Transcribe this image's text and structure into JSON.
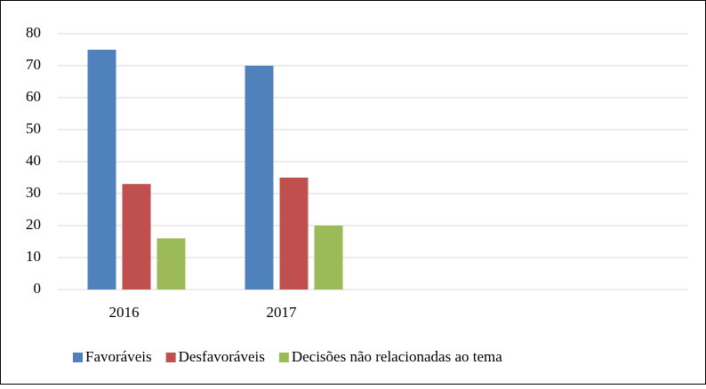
{
  "chart_data": {
    "type": "bar",
    "categories": [
      "2016",
      "2017",
      null,
      null
    ],
    "series": [
      {
        "name": "Favoráveis",
        "color": "#4f81bd",
        "values": [
          75,
          70,
          null,
          null
        ]
      },
      {
        "name": "Desfavoráveis",
        "color": "#c0504d",
        "values": [
          33,
          35,
          null,
          null
        ]
      },
      {
        "name": "Decisões não relacionadas ao tema",
        "color": "#9bbb59",
        "values": [
          16,
          20,
          null,
          null
        ]
      }
    ],
    "ylim": [
      0,
      80
    ],
    "yticks": [
      0,
      10,
      20,
      30,
      40,
      50,
      60,
      70,
      80
    ],
    "grid": true,
    "legend": "bottom"
  }
}
